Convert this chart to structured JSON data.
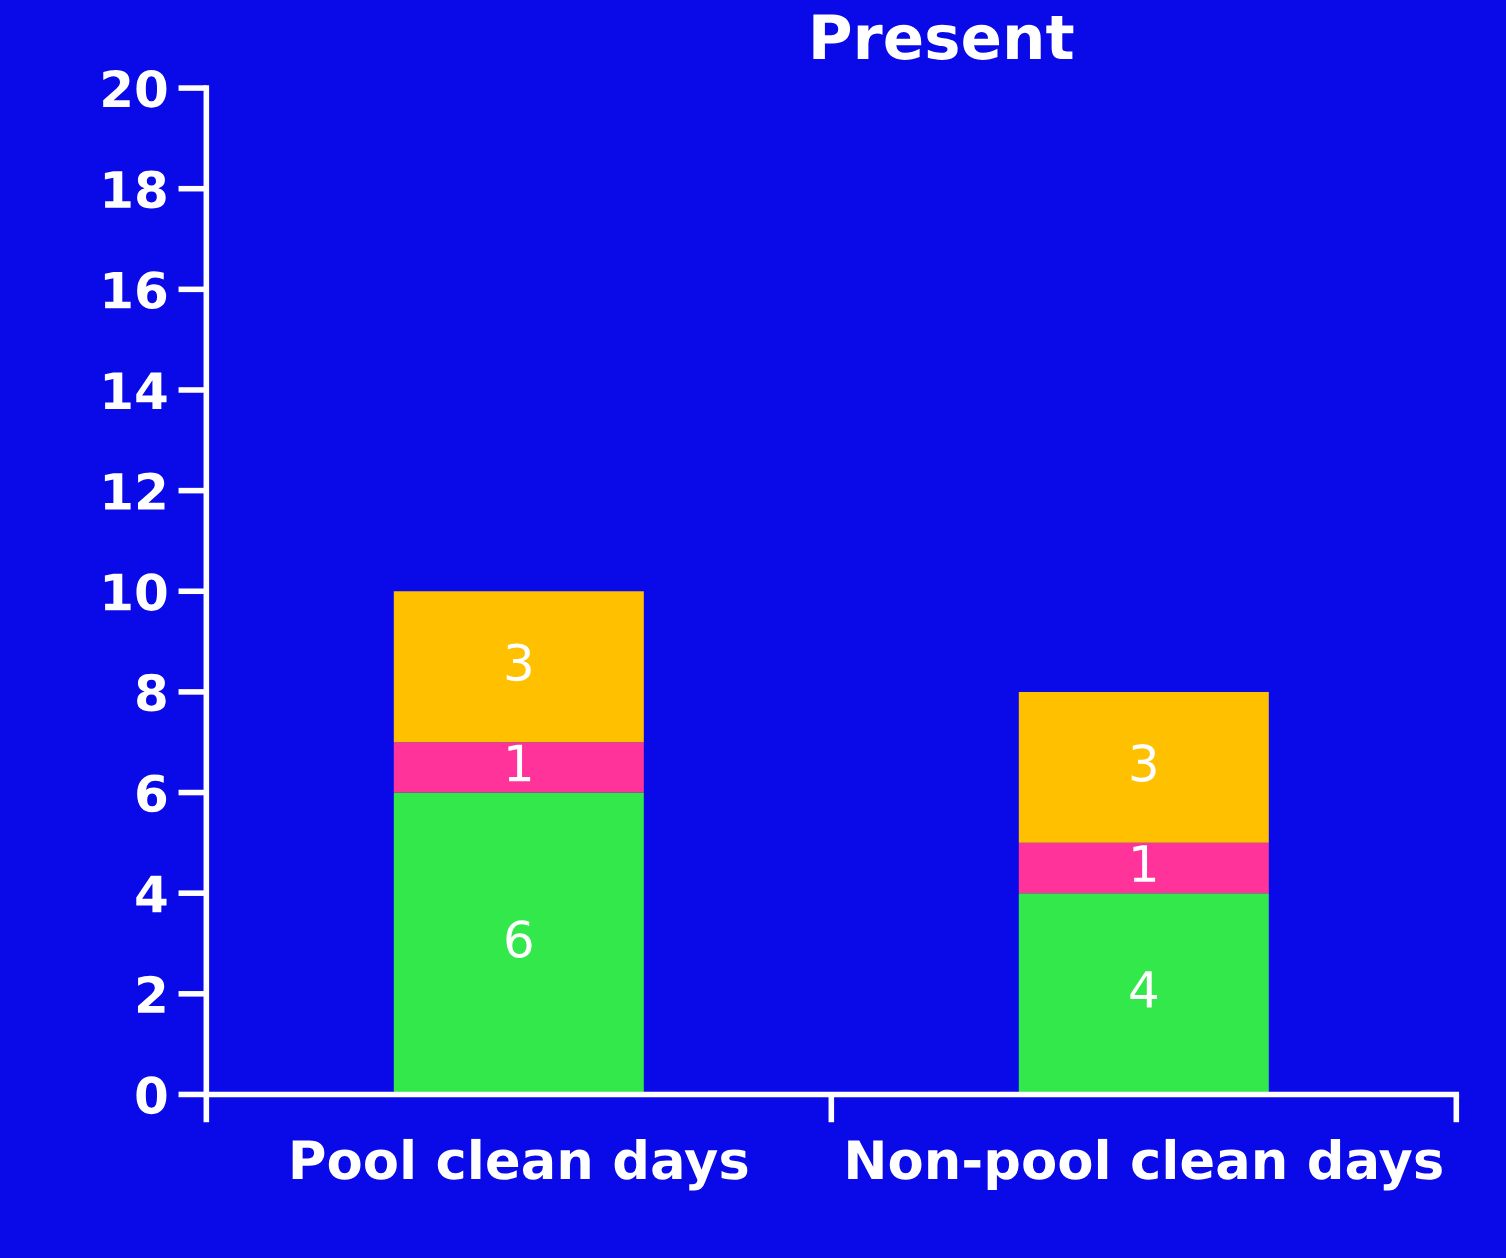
{
  "chart_data": {
    "type": "bar",
    "title": "Present",
    "stacked": true,
    "categories": [
      "Pool clean days",
      "Non-pool clean days"
    ],
    "series": [
      {
        "color": "#33e84a",
        "values": [
          6,
          4
        ]
      },
      {
        "color": "#ff3399",
        "values": [
          1,
          1
        ]
      },
      {
        "color": "#ffc000",
        "values": [
          3,
          3
        ]
      }
    ],
    "ylim": [
      0,
      20
    ],
    "yticks": [
      0,
      2,
      4,
      6,
      8,
      10,
      12,
      14,
      16,
      18,
      20
    ],
    "data_labels": true,
    "grid": false,
    "legend": false
  }
}
